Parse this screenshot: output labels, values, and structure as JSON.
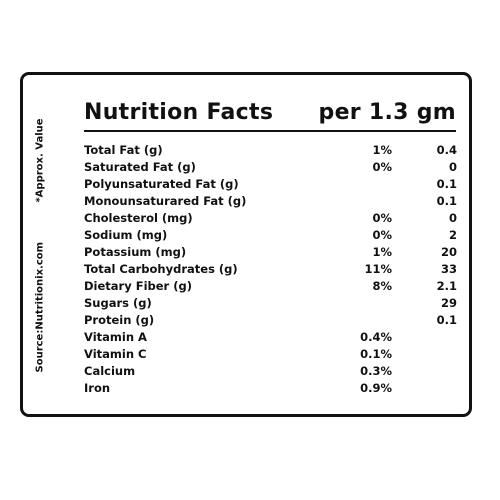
{
  "label": {
    "title": "Nutrition Facts",
    "serving": "per 1.3 gm",
    "side_note": "*Approx. Value",
    "side_source": "Source:Nutritionix.com"
  },
  "rows": [
    {
      "name": "Total Fat (g)",
      "pct": "1%",
      "val": "0.4"
    },
    {
      "name": "Saturated Fat (g)",
      "pct": "0%",
      "val": "0"
    },
    {
      "name": "Polyunsaturated Fat (g)",
      "pct": "",
      "val": "0.1"
    },
    {
      "name": "Monounsaturared Fat (g)",
      "pct": "",
      "val": "0.1"
    },
    {
      "name": "Cholesterol (mg)",
      "pct": "0%",
      "val": "0"
    },
    {
      "name": "Sodium (mg)",
      "pct": "0%",
      "val": "2"
    },
    {
      "name": "Potassium (mg)",
      "pct": "1%",
      "val": "20"
    },
    {
      "name": "Total Carbohydrates (g)",
      "pct": "11%",
      "val": "33"
    },
    {
      "name": "Dietary Fiber (g)",
      "pct": "8%",
      "val": "2.1"
    },
    {
      "name": "Sugars (g)",
      "pct": "",
      "val": "29"
    },
    {
      "name": "Protein (g)",
      "pct": "",
      "val": "0.1"
    },
    {
      "name": "Vitamin A",
      "pct": "0.4%",
      "val": ""
    },
    {
      "name": "Vitamin C",
      "pct": "0.1%",
      "val": ""
    },
    {
      "name": "Calcium",
      "pct": "0.3%",
      "val": ""
    },
    {
      "name": "Iron",
      "pct": "0.9%",
      "val": ""
    }
  ]
}
